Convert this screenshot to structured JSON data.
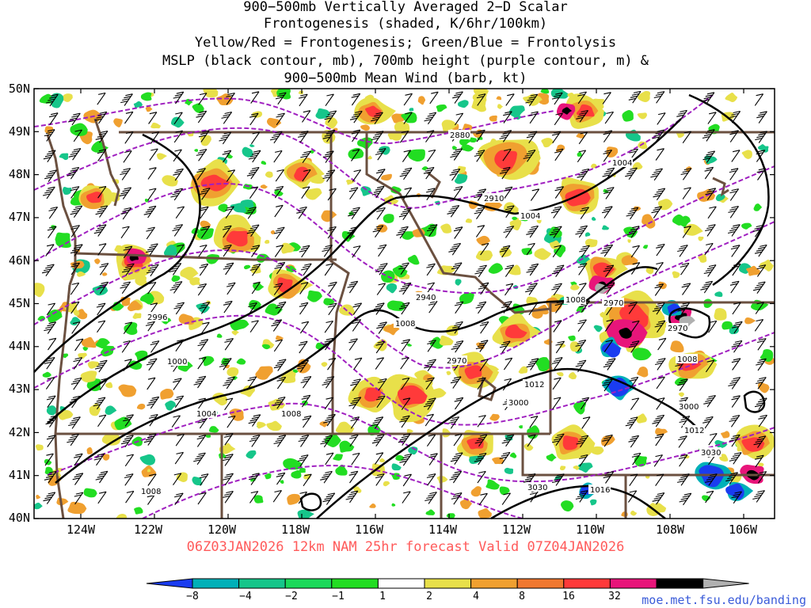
{
  "header": {
    "title_lines": [
      "900−500mb Vertically Averaged 2−D Scalar",
      "Frontogenesis (shaded, K/6hr/100km)",
      "Yellow/Red = Frontogenesis;  Green/Blue = Frontolysis",
      "MSLP (black contour, mb), 700mb height (purple contour, m) &",
      "900−500mb Mean Wind (barb, kt)"
    ]
  },
  "valid_text": "06Z03JAN2026 12km NAM 25hr forecast Valid 07Z04JAN2026",
  "axes": {
    "lat_labels": [
      "50N",
      "49N",
      "48N",
      "47N",
      "46N",
      "45N",
      "44N",
      "43N",
      "42N",
      "41N",
      "40N"
    ],
    "lon_labels": [
      "124W",
      "122W",
      "120W",
      "118W",
      "116W",
      "114W",
      "112W",
      "110W",
      "108W",
      "106W"
    ]
  },
  "contour_labels": {
    "mslp": [
      "1004",
      "1004",
      "1008",
      "1008",
      "1000",
      "1004",
      "1008",
      "1012",
      "1008",
      "1012",
      "1016",
      "1008"
    ],
    "height": [
      "2880",
      "2910",
      "2940",
      "2970",
      "2996",
      "2970",
      "3000",
      "3000",
      "3030",
      "3030",
      "2970"
    ]
  },
  "colorbar": {
    "labels": [
      "−8",
      "−4",
      "−2",
      "−1",
      "1",
      "2",
      "4",
      "8",
      "16",
      "32"
    ],
    "colors": [
      "#1a3cf0",
      "#00b0b8",
      "#16c68a",
      "#1bd95a",
      "#22dd22",
      "#ffffff",
      "#e8e04a",
      "#f0a030",
      "#f07830",
      "#ff3a3a",
      "#e8157a",
      "#000000",
      "#b0b0b0"
    ]
  },
  "colors": {
    "mslp": "#000000",
    "height": "#a020c0",
    "borders": "#6b5040",
    "valid_text": "#ff5a5a",
    "url": "#3a5bd9"
  },
  "footer_url": "moe.met.fsu.edu/banding"
}
